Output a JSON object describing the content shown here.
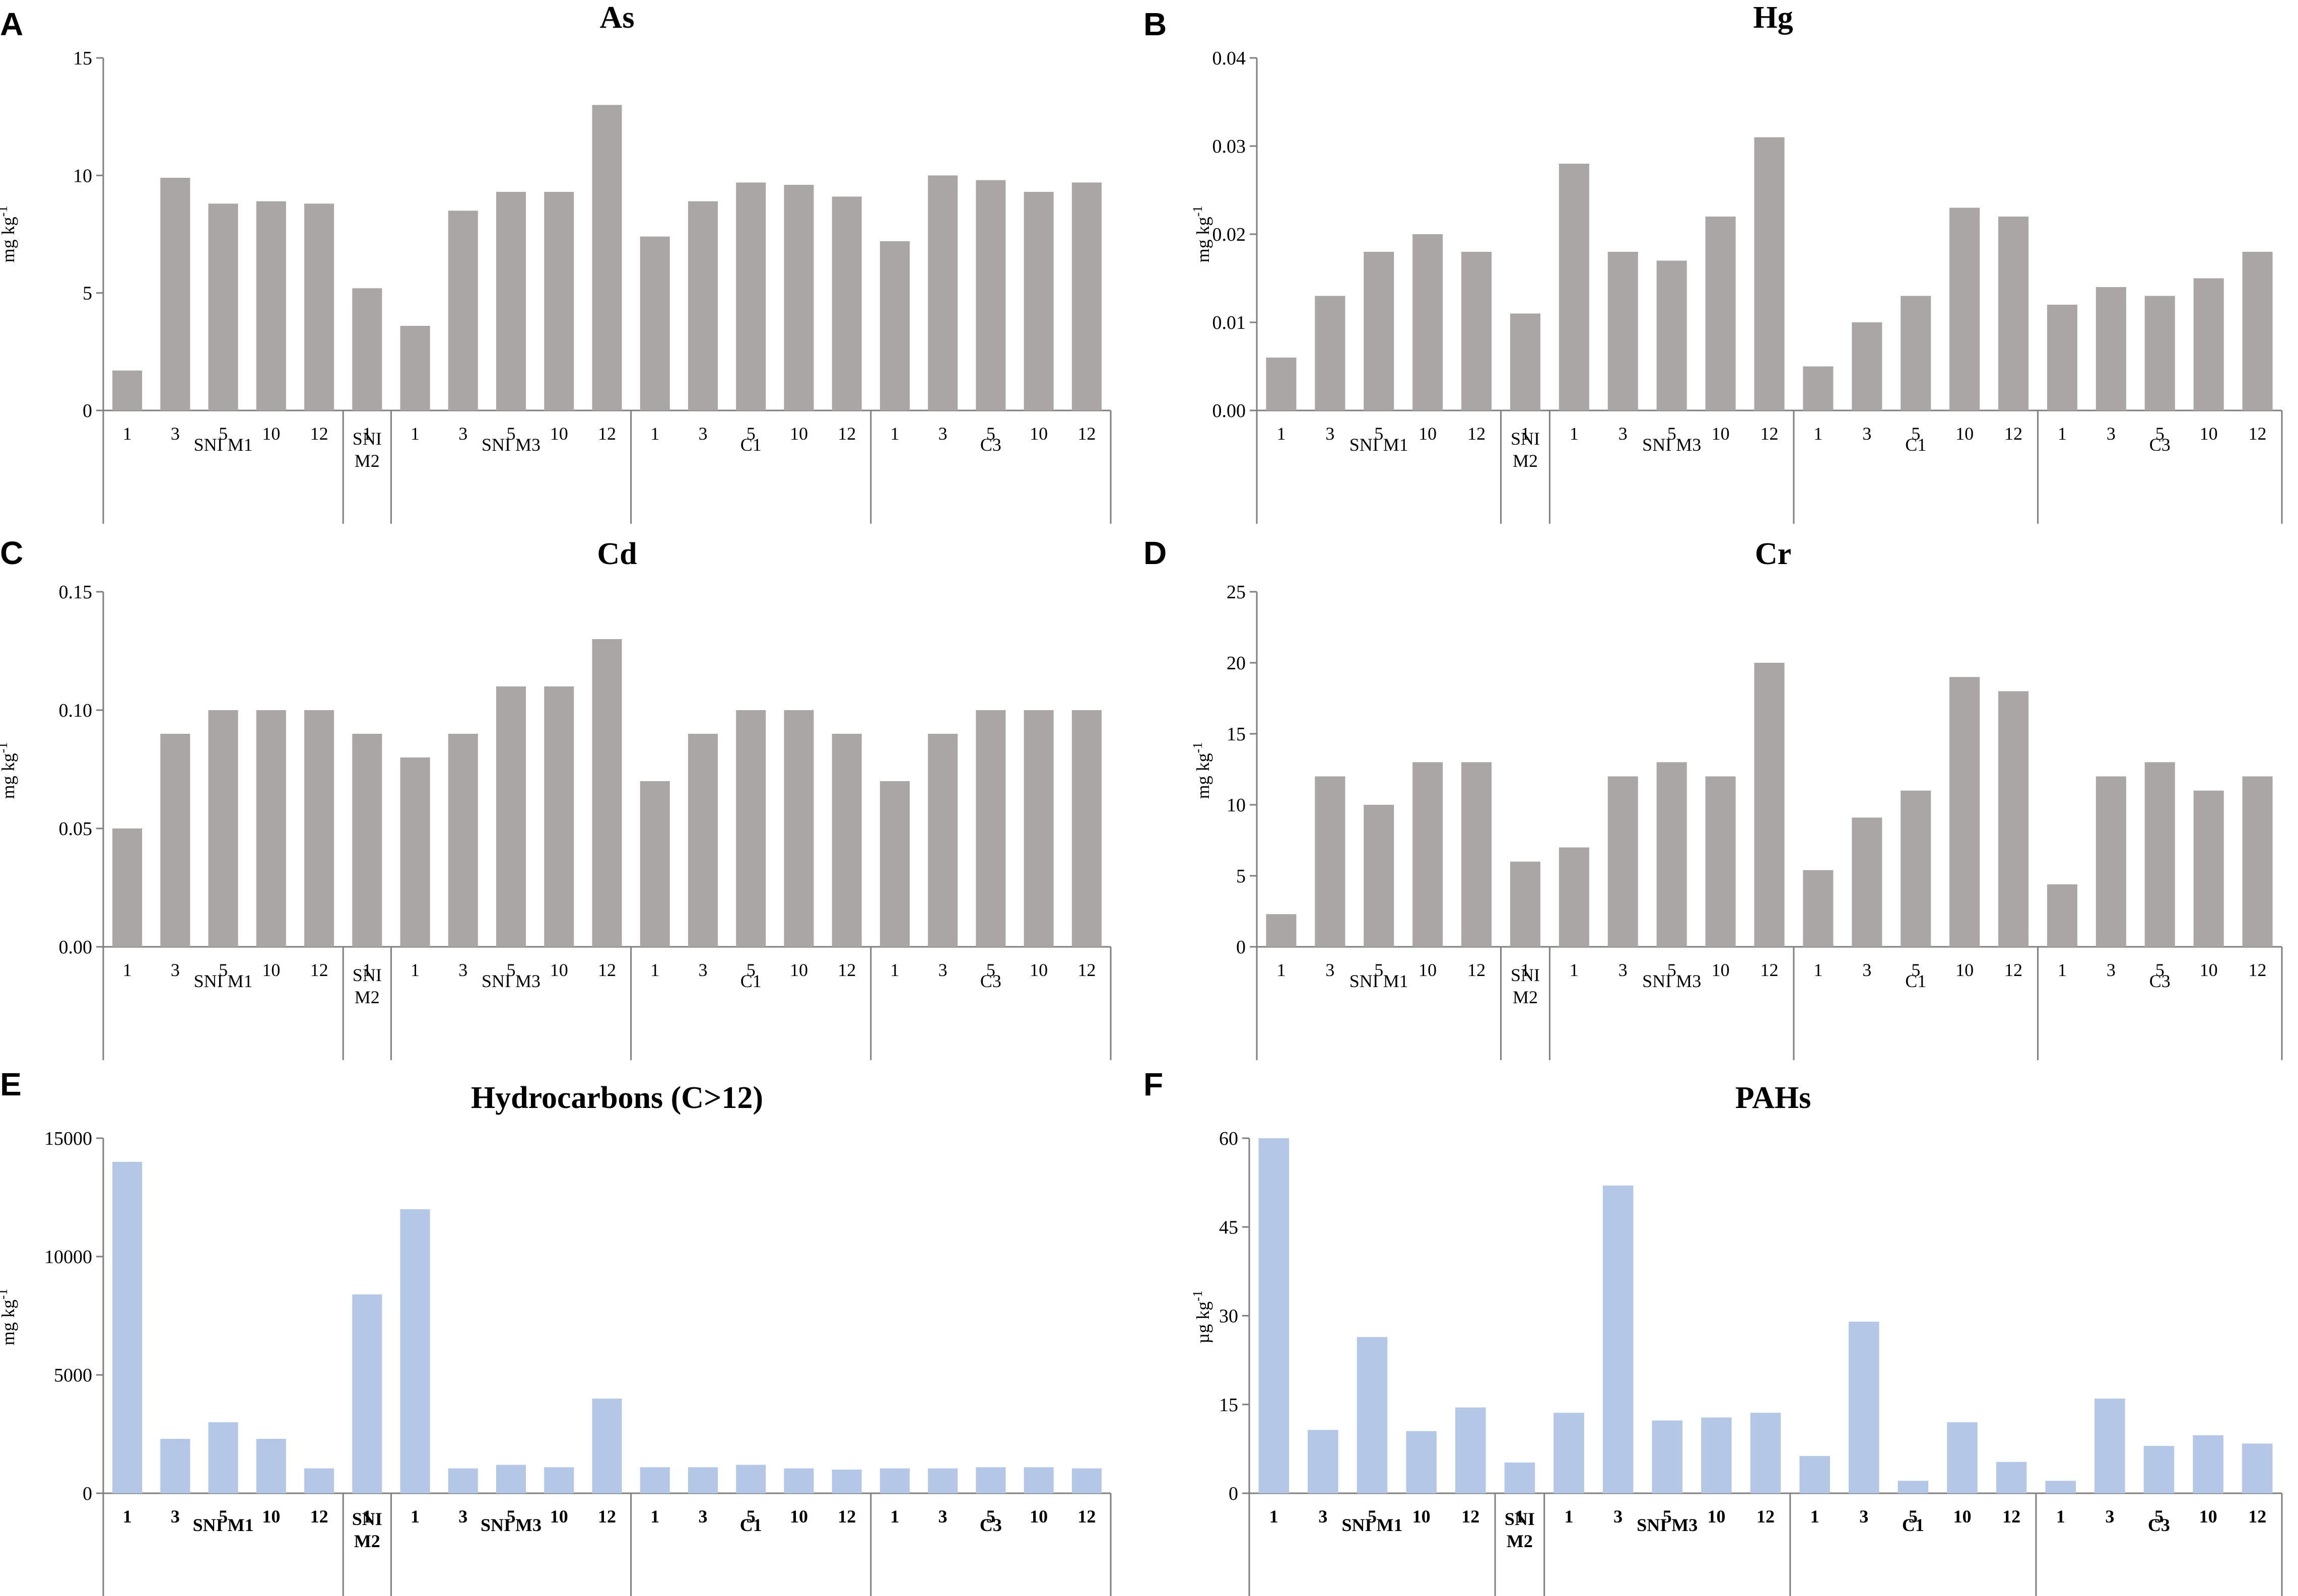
{
  "colors": {
    "gray_bar": "#aaa6a6",
    "blue_bar": "#b4c7e7",
    "axis": "#7f7f7f"
  },
  "chart_data": [
    {
      "panel": "A",
      "type": "bar",
      "title": "As",
      "ylabel": "mg kg-1",
      "unit_main": "mg kg",
      "unit_sup": "-1",
      "ylim": [
        0,
        15
      ],
      "yticks": [
        0,
        5,
        10,
        15
      ],
      "ytick_labels": [
        "0",
        "5",
        "10",
        "15"
      ],
      "groups": [
        {
          "name": "SNI M1",
          "categories": [
            "1",
            "3",
            "5",
            "10",
            "12"
          ],
          "values": [
            1.7,
            9.9,
            8.8,
            8.9,
            8.8
          ]
        },
        {
          "name": "SNI M2",
          "categories": [
            "1"
          ],
          "values": [
            5.2
          ]
        },
        {
          "name": "SNI M3",
          "categories": [
            "1",
            "3",
            "5",
            "10",
            "12"
          ],
          "values": [
            3.6,
            8.5,
            9.3,
            9.3,
            13.0
          ]
        },
        {
          "name": "C1",
          "categories": [
            "1",
            "3",
            "5",
            "10",
            "12"
          ],
          "values": [
            7.4,
            8.9,
            9.7,
            9.6,
            9.1
          ]
        },
        {
          "name": "C3",
          "categories": [
            "1",
            "3",
            "5",
            "10",
            "12"
          ],
          "values": [
            7.2,
            10.0,
            9.8,
            9.3,
            9.7
          ]
        }
      ],
      "group_labels": [
        "SNI M1",
        [
          "SNI",
          "M2"
        ],
        "SNI M3",
        "C1",
        "C3"
      ]
    },
    {
      "panel": "B",
      "type": "bar",
      "title": "Hg",
      "ylabel": "mg kg-1",
      "unit_main": "mg kg",
      "unit_sup": "-1",
      "ylim": [
        0,
        0.04
      ],
      "yticks": [
        0,
        0.01,
        0.02,
        0.03,
        0.04
      ],
      "ytick_labels": [
        "0.00",
        "0.01",
        "0.02",
        "0.03",
        "0.04"
      ],
      "groups": [
        {
          "name": "SNI M1",
          "categories": [
            "1",
            "3",
            "5",
            "10",
            "12"
          ],
          "values": [
            0.006,
            0.013,
            0.018,
            0.02,
            0.018
          ]
        },
        {
          "name": "SNI M2",
          "categories": [
            "1"
          ],
          "values": [
            0.011
          ]
        },
        {
          "name": "SNI M3",
          "categories": [
            "1",
            "3",
            "5",
            "10",
            "12"
          ],
          "values": [
            0.028,
            0.018,
            0.017,
            0.022,
            0.031
          ]
        },
        {
          "name": "C1",
          "categories": [
            "1",
            "3",
            "5",
            "10",
            "12"
          ],
          "values": [
            0.005,
            0.01,
            0.013,
            0.023,
            0.022
          ]
        },
        {
          "name": "C3",
          "categories": [
            "1",
            "3",
            "5",
            "10",
            "12"
          ],
          "values": [
            0.012,
            0.014,
            0.013,
            0.015,
            0.018
          ]
        }
      ],
      "group_labels": [
        "SNI M1",
        [
          "SNI",
          "M2"
        ],
        "SNI M3",
        "C1",
        "C3"
      ]
    },
    {
      "panel": "C",
      "type": "bar",
      "title": "Cd",
      "ylabel": "mg kg-1",
      "unit_main": "mg kg",
      "unit_sup": "-1",
      "ylim": [
        0,
        0.15
      ],
      "yticks": [
        0,
        0.05,
        0.1,
        0.15
      ],
      "ytick_labels": [
        "0.00",
        "0.05",
        "0.10",
        "0.15"
      ],
      "groups": [
        {
          "name": "SNI M1",
          "categories": [
            "1",
            "3",
            "5",
            "10",
            "12"
          ],
          "values": [
            0.05,
            0.09,
            0.1,
            0.1,
            0.1
          ]
        },
        {
          "name": "SNI M2",
          "categories": [
            "1"
          ],
          "values": [
            0.09
          ]
        },
        {
          "name": "SNI M3",
          "categories": [
            "1",
            "3",
            "5",
            "10",
            "12"
          ],
          "values": [
            0.08,
            0.09,
            0.11,
            0.11,
            0.13
          ]
        },
        {
          "name": "C1",
          "categories": [
            "1",
            "3",
            "5",
            "10",
            "12"
          ],
          "values": [
            0.07,
            0.09,
            0.1,
            0.1,
            0.09
          ]
        },
        {
          "name": "C3",
          "categories": [
            "1",
            "3",
            "5",
            "10",
            "12"
          ],
          "values": [
            0.07,
            0.09,
            0.1,
            0.1,
            0.1
          ]
        }
      ],
      "group_labels": [
        "SNI M1",
        [
          "SNI",
          "M2"
        ],
        "SNI M3",
        "C1",
        "C3"
      ]
    },
    {
      "panel": "D",
      "type": "bar",
      "title": "Cr",
      "ylabel": "mg kg-1",
      "unit_main": "mg kg",
      "unit_sup": "-1",
      "ylim": [
        0,
        25
      ],
      "yticks": [
        0,
        5,
        10,
        15,
        20,
        25
      ],
      "ytick_labels": [
        "0",
        "5",
        "10",
        "15",
        "20",
        "25"
      ],
      "groups": [
        {
          "name": "SNI M1",
          "categories": [
            "1",
            "3",
            "5",
            "10",
            "12"
          ],
          "values": [
            2.3,
            12,
            10,
            13,
            13
          ]
        },
        {
          "name": "SNI M2",
          "categories": [
            "1"
          ],
          "values": [
            6
          ]
        },
        {
          "name": "SNI M3",
          "categories": [
            "1",
            "3",
            "5",
            "10",
            "12"
          ],
          "values": [
            7,
            12,
            13,
            12,
            20
          ]
        },
        {
          "name": "C1",
          "categories": [
            "1",
            "3",
            "5",
            "10",
            "12"
          ],
          "values": [
            5.4,
            9.1,
            11,
            19,
            18
          ]
        },
        {
          "name": "C3",
          "categories": [
            "1",
            "3",
            "5",
            "10",
            "12"
          ],
          "values": [
            4.4,
            12,
            13,
            11,
            12
          ]
        }
      ],
      "group_labels": [
        "SNI M1",
        [
          "SNI",
          "M2"
        ],
        "SNI M3",
        "C1",
        "C3"
      ]
    },
    {
      "panel": "E",
      "type": "bar",
      "title": "Hydrocarbons (C>12)",
      "ylabel": "mg kg-1",
      "unit_main": "mg kg",
      "unit_sup": "-1",
      "ylim": [
        0,
        15000
      ],
      "yticks": [
        0,
        5000,
        10000,
        15000
      ],
      "ytick_labels": [
        "0",
        "5000",
        "10000",
        "15000"
      ],
      "groups": [
        {
          "name": "SNI M1",
          "categories": [
            "1",
            "3",
            "5",
            "10",
            "12"
          ],
          "values": [
            14000,
            2300,
            3000,
            2300,
            1050
          ]
        },
        {
          "name": "SNI M2",
          "categories": [
            "1"
          ],
          "values": [
            8400
          ]
        },
        {
          "name": "SNI M3",
          "categories": [
            "1",
            "3",
            "5",
            "10",
            "12"
          ],
          "values": [
            12000,
            1050,
            1200,
            1100,
            4000
          ]
        },
        {
          "name": "C1",
          "categories": [
            "1",
            "3",
            "5",
            "10",
            "12"
          ],
          "values": [
            1100,
            1100,
            1200,
            1050,
            1000
          ]
        },
        {
          "name": "C3",
          "categories": [
            "1",
            "3",
            "5",
            "10",
            "12"
          ],
          "values": [
            1050,
            1050,
            1100,
            1100,
            1050
          ]
        }
      ],
      "group_labels": [
        "SNI M1",
        [
          "SNI",
          "M2"
        ],
        "SNI M3",
        "C1",
        "C3"
      ]
    },
    {
      "panel": "F",
      "type": "bar",
      "title": "PAHs",
      "ylabel": "µg kg-1",
      "unit_main": "µg kg",
      "unit_sup": "-1",
      "ylim": [
        0,
        60
      ],
      "yticks": [
        0,
        15,
        30,
        45,
        60
      ],
      "ytick_labels": [
        "0",
        "15",
        "30",
        "45",
        "60"
      ],
      "groups": [
        {
          "name": "SNI M1",
          "categories": [
            "1",
            "3",
            "5",
            "10",
            "12"
          ],
          "values": [
            60,
            10.7,
            26.4,
            10.5,
            14.5
          ]
        },
        {
          "name": "SNI M2",
          "categories": [
            "1"
          ],
          "values": [
            5.2
          ]
        },
        {
          "name": "SNI M3",
          "categories": [
            "1",
            "3",
            "5",
            "10",
            "12"
          ],
          "values": [
            13.6,
            52,
            12.3,
            12.8,
            13.6
          ]
        },
        {
          "name": "C1",
          "categories": [
            "1",
            "3",
            "5",
            "10",
            "12"
          ],
          "values": [
            6.3,
            29,
            2.1,
            12,
            5.3
          ]
        },
        {
          "name": "C3",
          "categories": [
            "1",
            "3",
            "5",
            "10",
            "12"
          ],
          "values": [
            2.1,
            16,
            8,
            9.8,
            8.4
          ]
        }
      ],
      "group_labels": [
        "SNI M1",
        [
          "SNI",
          "M2"
        ],
        "SNI M3",
        "C1",
        "C3"
      ]
    }
  ]
}
